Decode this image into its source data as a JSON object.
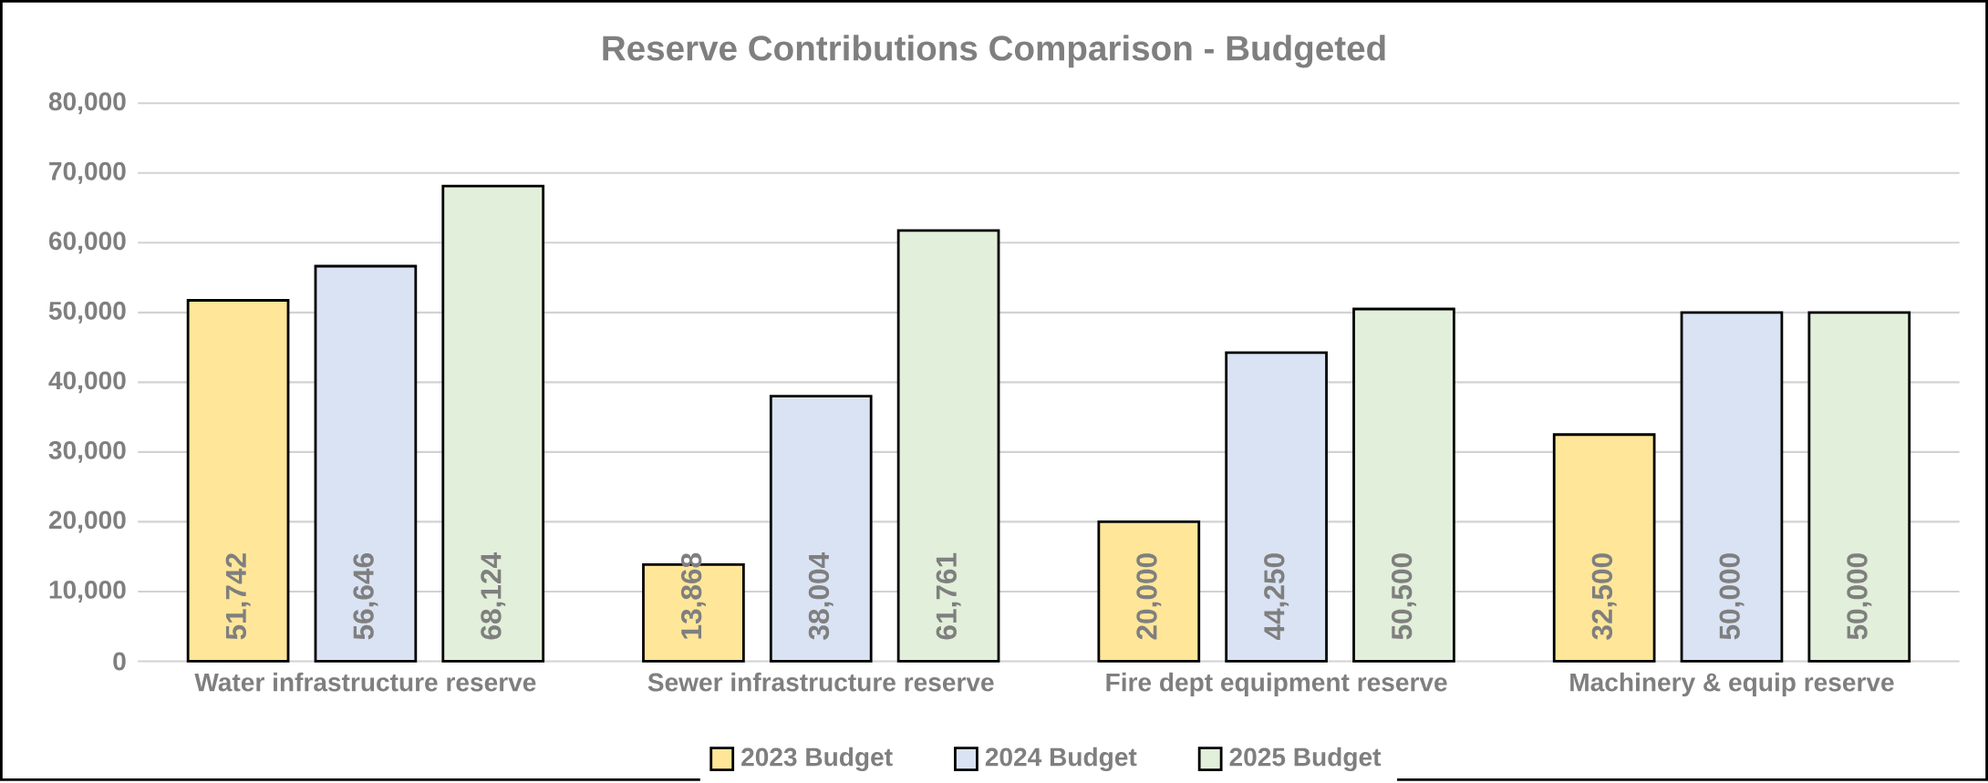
{
  "chart_data": {
    "type": "bar",
    "title": "Reserve Contributions  Comparison  - Budgeted",
    "categories": [
      "Water infrastructure reserve",
      "Sewer infrastructure reserve",
      "Fire dept equipment reserve",
      "Machinery & equip reserve"
    ],
    "series": [
      {
        "name": "2023 Budget",
        "color": "#ffe699",
        "values": [
          51742,
          13868,
          20000,
          32500
        ],
        "value_labels": [
          "51,742",
          "13,868",
          "20,000",
          "32,500"
        ]
      },
      {
        "name": "2024 Budget",
        "color": "#dae3f3",
        "values": [
          56646,
          38004,
          44250,
          50000
        ],
        "value_labels": [
          "56,646",
          "38,004",
          "44,250",
          "50,000"
        ]
      },
      {
        "name": "2025 Budget",
        "color": "#e2efda",
        "values": [
          68124,
          61761,
          50500,
          50000
        ],
        "value_labels": [
          "68,124",
          "61,761",
          "50,500",
          "50,000"
        ]
      }
    ],
    "ylim": [
      0,
      80000
    ],
    "yticks": [
      {
        "value": 0,
        "label": "0"
      },
      {
        "value": 10000,
        "label": "10,000"
      },
      {
        "value": 20000,
        "label": "20,000"
      },
      {
        "value": 30000,
        "label": "30,000"
      },
      {
        "value": 40000,
        "label": "40,000"
      },
      {
        "value": 50000,
        "label": "50,000"
      },
      {
        "value": 60000,
        "label": "60,000"
      },
      {
        "value": 70000,
        "label": "70,000"
      },
      {
        "value": 80000,
        "label": "80,000"
      }
    ],
    "grid": "y",
    "legend": "bottom"
  }
}
